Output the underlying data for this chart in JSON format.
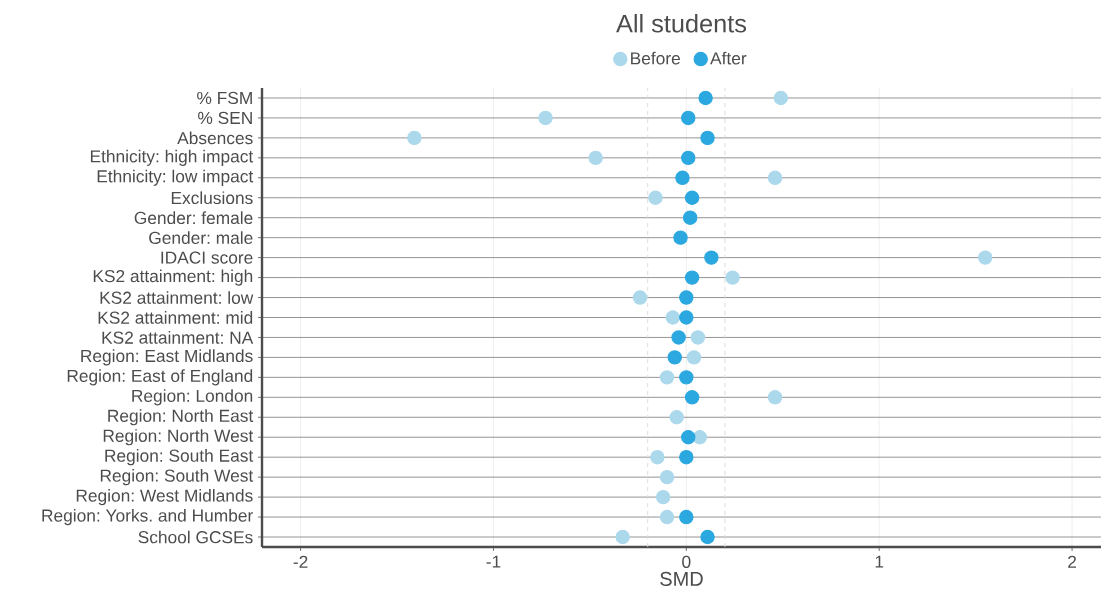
{
  "chart_data": {
    "type": "scatter",
    "title": "All students",
    "xlabel": "SMD",
    "categories": [
      "% FSM",
      "% SEN",
      "Absences",
      "Ethnicity: high impact",
      "Ethnicity: low impact",
      "Exclusions",
      "Gender: female",
      "Gender: male",
      "IDACI score",
      "KS2 attainment: high",
      "KS2 attainment: low",
      "KS2 attainment: mid",
      "KS2 attainment: NA",
      "Region: East Midlands",
      "Region: East of England",
      "Region: London",
      "Region: North East",
      "Region: North West",
      "Region: South East",
      "Region: South West",
      "Region: West Midlands",
      "Region: Yorks. and Humber",
      "School GCSEs"
    ],
    "orientation": "horizontal",
    "series": [
      {
        "name": "Before",
        "color": "#acd8ec",
        "values": [
          0.49,
          -0.73,
          -1.41,
          -0.47,
          0.46,
          -0.16,
          null,
          null,
          1.55,
          0.24,
          -0.24,
          -0.07,
          0.06,
          0.04,
          -0.1,
          0.46,
          -0.05,
          0.07,
          -0.15,
          -0.1,
          -0.12,
          -0.1,
          -0.33
        ]
      },
      {
        "name": "After",
        "color": "#2ba8e0",
        "values": [
          0.1,
          0.01,
          0.11,
          0.01,
          -0.02,
          0.03,
          0.02,
          -0.03,
          0.13,
          0.03,
          0.0,
          0.0,
          -0.04,
          -0.06,
          0.0,
          0.03,
          null,
          0.01,
          0.0,
          null,
          null,
          0.0,
          0.11
        ]
      }
    ],
    "xlim": [
      -2.2,
      2.15
    ],
    "xticks": [
      -2,
      -1,
      0,
      1,
      2
    ],
    "ref_lines": [
      {
        "axis": "x",
        "value": -0.2,
        "color": "#d9d9d9",
        "line_style": "dashed"
      },
      {
        "axis": "x",
        "value": 0.2,
        "color": "#d9d9d9",
        "line_style": "dashed"
      }
    ],
    "grid": true,
    "legend": "top",
    "marker": "circle"
  }
}
